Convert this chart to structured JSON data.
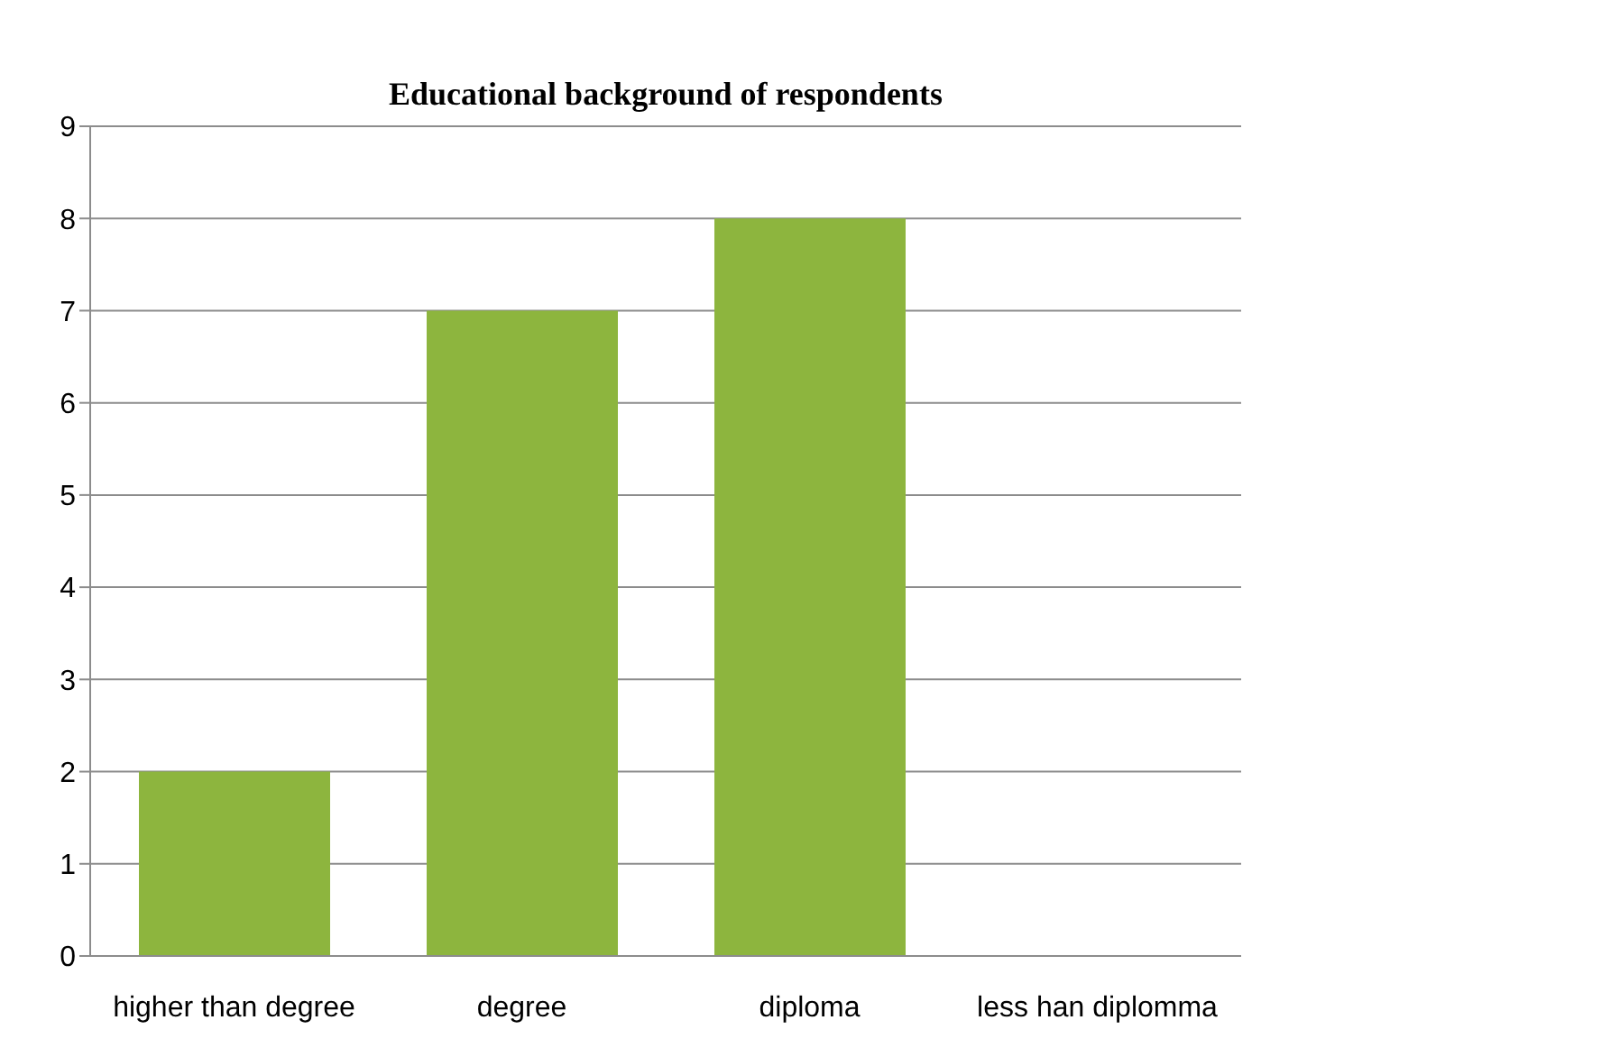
{
  "chart_data": {
    "type": "bar",
    "title": "Educational background of respondents",
    "categories": [
      "higher than degree",
      "degree",
      "diploma",
      "less han diplomma"
    ],
    "values": [
      2,
      7,
      8,
      0
    ],
    "color": "#8db53e",
    "ylim": [
      0,
      9
    ],
    "yticks": [
      0,
      1,
      2,
      3,
      4,
      5,
      6,
      7,
      8,
      9
    ],
    "grid": "y",
    "legend": false
  }
}
